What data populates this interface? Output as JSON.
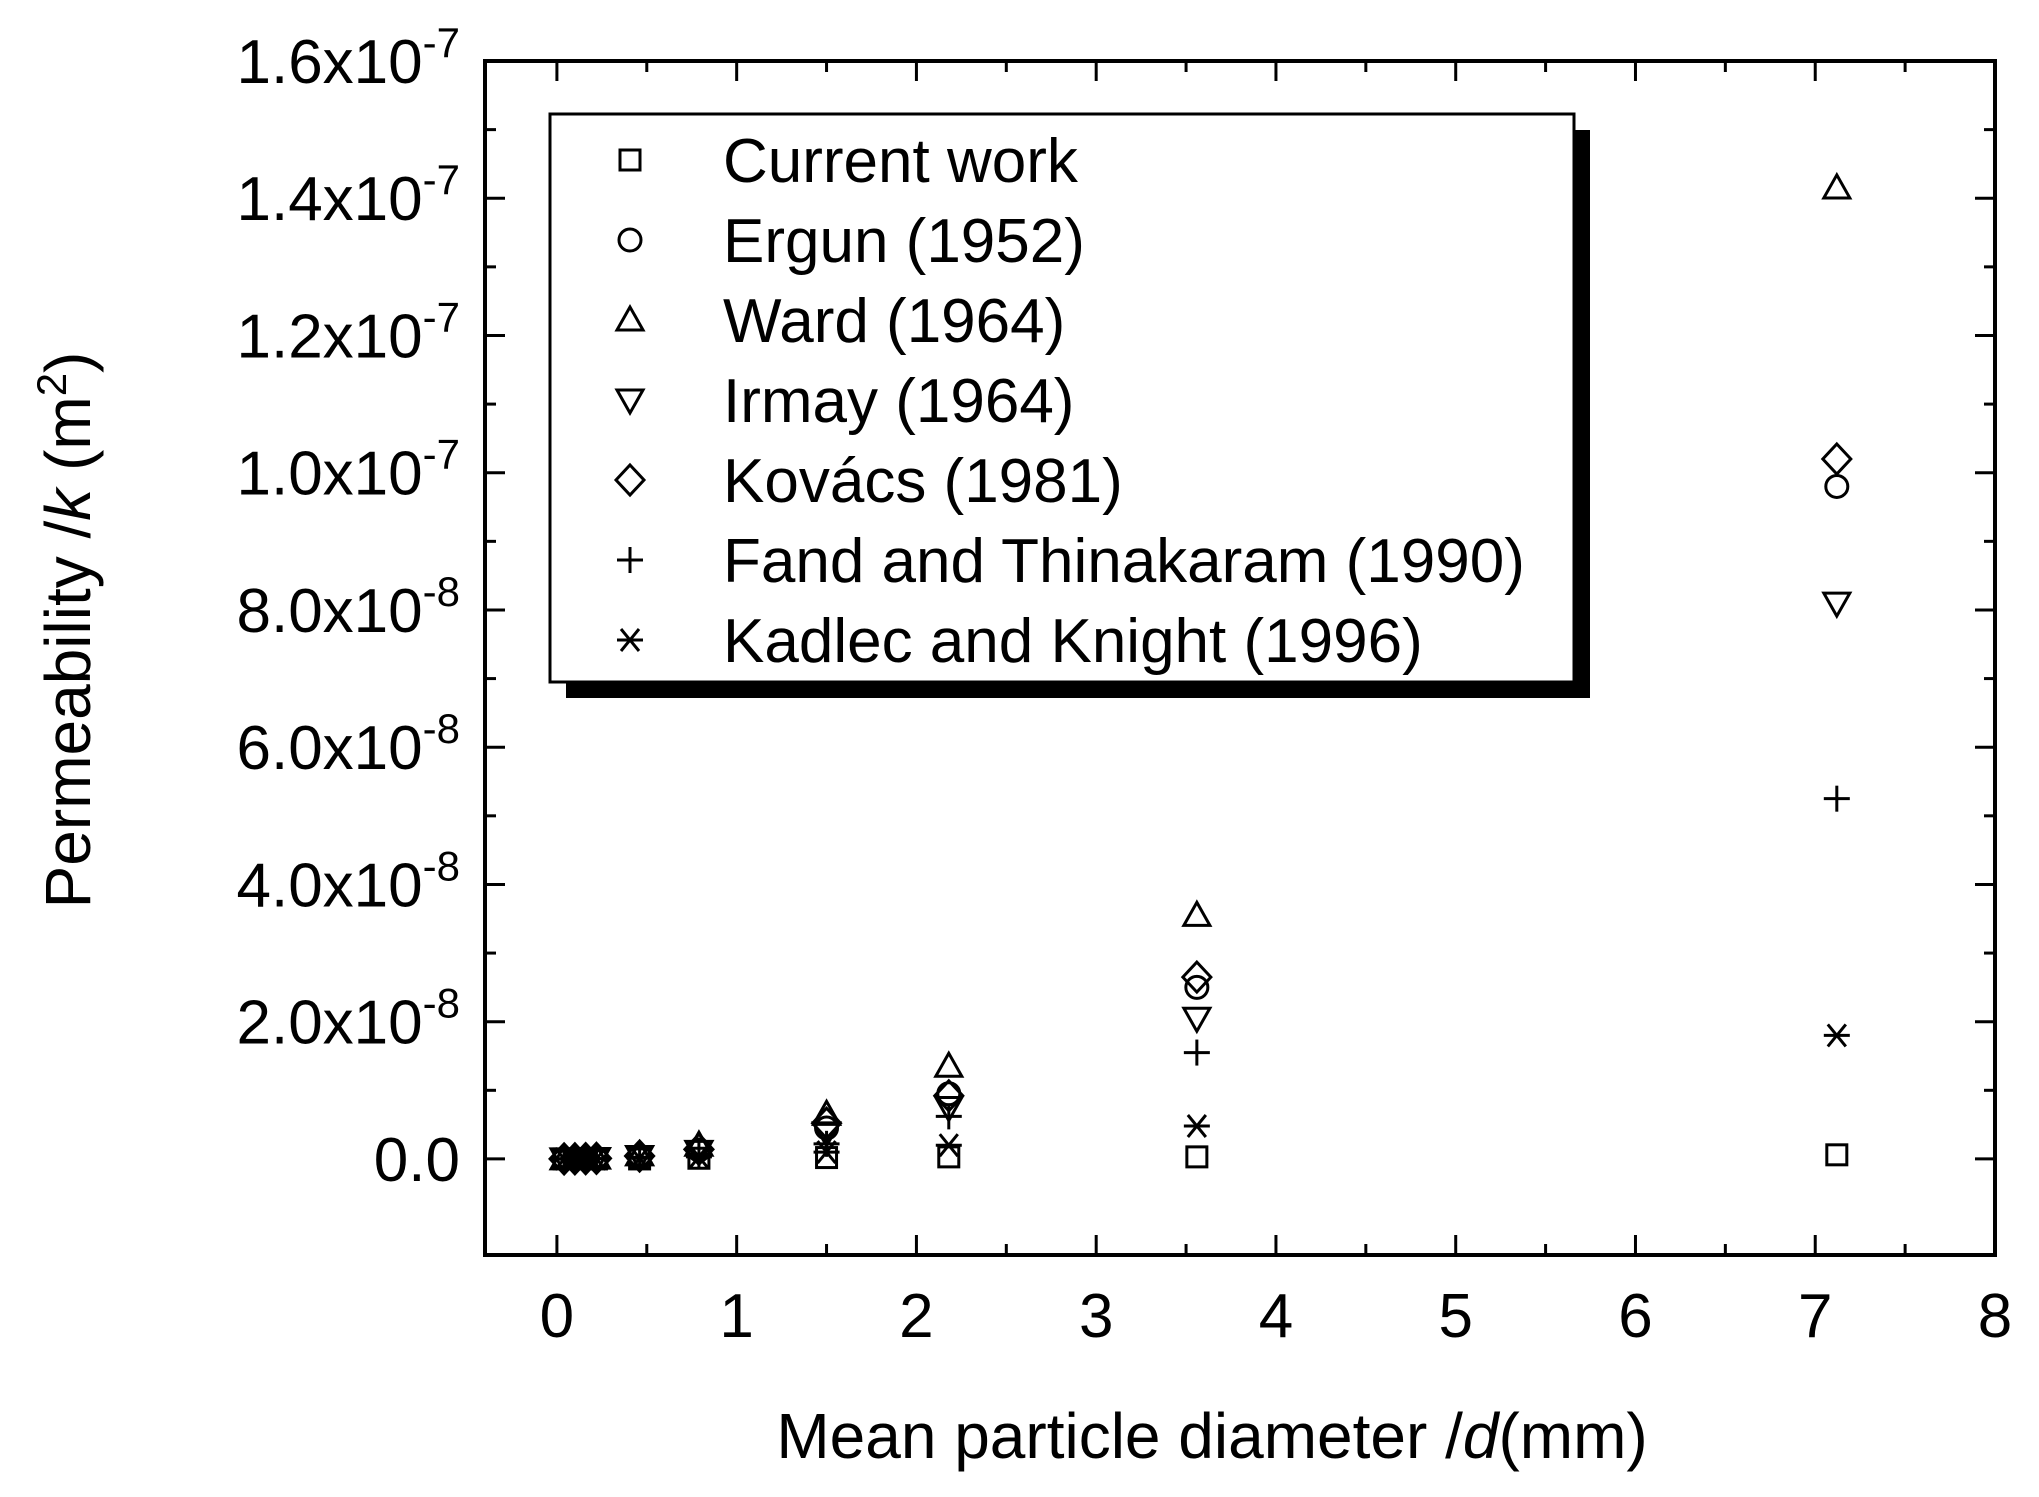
{
  "chart_data": {
    "type": "scatter",
    "title": "",
    "xlabel": {
      "prefix": "Mean particle diameter /",
      "var": "d",
      "suffix": "(mm)"
    },
    "ylabel": {
      "prefix": "Permeability /",
      "var": "k",
      "unit_open": " (m",
      "unit_sup": "2",
      "unit_close": ")"
    },
    "xlim": [
      -0.4,
      8
    ],
    "ylim": [
      -1.4e-08,
      1.6e-07
    ],
    "x_ticks": [
      0,
      1,
      2,
      3,
      4,
      5,
      6,
      7,
      8
    ],
    "x_tick_labels": [
      "0",
      "1",
      "2",
      "3",
      "4",
      "5",
      "6",
      "7",
      "8"
    ],
    "y_ticks": [
      0,
      2e-08,
      4e-08,
      6e-08,
      8e-08,
      1e-07,
      1.2e-07,
      1.4e-07,
      1.6e-07
    ],
    "y_tick_labels": [
      {
        "mant": "0.0",
        "exp": ""
      },
      {
        "mant": "2.0x10",
        "exp": "-8"
      },
      {
        "mant": "4.0x10",
        "exp": "-8"
      },
      {
        "mant": "6.0x10",
        "exp": "-8"
      },
      {
        "mant": "8.0x10",
        "exp": "-8"
      },
      {
        "mant": "1.0x10",
        "exp": "-7"
      },
      {
        "mant": "1.2x10",
        "exp": "-7"
      },
      {
        "mant": "1.4x10",
        "exp": "-7"
      },
      {
        "mant": "1.6x10",
        "exp": "-7"
      }
    ],
    "grid": false,
    "legend_position": "top-left",
    "series": [
      {
        "name": "Current work",
        "marker": "square",
        "x": [
          0.04,
          0.1,
          0.16,
          0.22,
          0.46,
          0.79,
          1.5,
          2.18,
          3.56,
          7.12
        ],
        "y": [
          0,
          0,
          0,
          0,
          0,
          1e-10,
          2e-10,
          3e-10,
          3e-10,
          6e-10
        ]
      },
      {
        "name": "Ergun (1952)",
        "marker": "circle",
        "x": [
          0.04,
          0.1,
          0.16,
          0.22,
          0.46,
          0.79,
          1.5,
          2.18,
          3.56,
          7.12
        ],
        "y": [
          2e-12,
          1.5e-11,
          4e-11,
          8e-11,
          4e-10,
          1.3e-09,
          4.5e-09,
          9.5e-09,
          2.5e-08,
          9.8e-08
        ]
      },
      {
        "name": "Ward (1964)",
        "marker": "triangle-up",
        "x": [
          0.04,
          0.1,
          0.16,
          0.22,
          0.46,
          0.79,
          1.5,
          2.18,
          3.56,
          7.12
        ],
        "y": [
          3e-12,
          2e-11,
          5e-11,
          1.1e-10,
          6e-10,
          2e-09,
          6.5e-09,
          1.35e-08,
          3.55e-08,
          1.415e-07
        ]
      },
      {
        "name": "Irmay (1964)",
        "marker": "triangle-down",
        "x": [
          0.04,
          0.1,
          0.16,
          0.22,
          0.46,
          0.79,
          1.5,
          2.18,
          3.56,
          7.12
        ],
        "y": [
          1.5e-12,
          1.2e-11,
          3e-11,
          6e-11,
          3.5e-10,
          1.1e-09,
          3.8e-09,
          7.5e-09,
          2.05e-08,
          8.1e-08
        ]
      },
      {
        "name": "Kovács (1981)",
        "marker": "diamond",
        "x": [
          0.04,
          0.1,
          0.16,
          0.22,
          0.46,
          0.79,
          1.5,
          2.18,
          3.56,
          7.12
        ],
        "y": [
          2e-12,
          1.6e-11,
          4.2e-11,
          8.5e-11,
          4.2e-10,
          1.4e-09,
          5.2e-09,
          9.2e-09,
          2.65e-08,
          1.02e-07
        ]
      },
      {
        "name": "Fand and Thinakaram (1990)",
        "marker": "plus",
        "x": [
          0.04,
          0.1,
          0.16,
          0.22,
          0.46,
          0.79,
          1.5,
          2.18,
          3.56,
          7.12
        ],
        "y": [
          1e-12,
          8e-12,
          2e-11,
          4.5e-11,
          2.5e-10,
          7e-10,
          2.2e-09,
          6.2e-09,
          1.55e-08,
          5.25e-08
        ]
      },
      {
        "name": "Kadlec and Knight (1996)",
        "marker": "asterisk",
        "x": [
          0.04,
          0.1,
          0.16,
          0.22,
          0.46,
          0.79,
          1.5,
          2.18,
          3.56,
          7.12
        ],
        "y": [
          5e-13,
          3e-12,
          8e-12,
          2e-11,
          1e-10,
          3e-10,
          1e-09,
          2e-09,
          4.8e-09,
          1.8e-08
        ]
      }
    ]
  }
}
